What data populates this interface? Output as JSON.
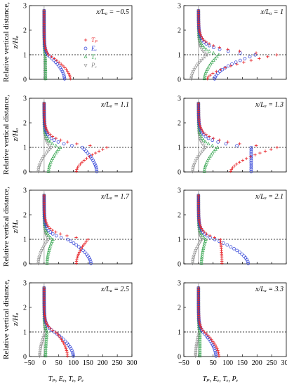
{
  "ylabel_line1": "Relative vertical distance,",
  "ylabel_line2": "z/Hₐ",
  "xlabel": "Tₚ, Eₑ, Tₑ, Pₑ",
  "colors": {
    "TP": "#e8262b",
    "ED": "#2a3cd6",
    "TD": "#2fa24a",
    "PD": "#8c8c8c"
  },
  "legend": [
    {
      "key": "TP",
      "label": "Tₚ",
      "marker": "+"
    },
    {
      "key": "ED",
      "label": "Eₑ",
      "marker": "o"
    },
    {
      "key": "TD",
      "label": "Tₑ",
      "marker": "triangle"
    },
    {
      "key": "PD",
      "label": "Pₑ",
      "marker": "v"
    }
  ],
  "chart_data": {
    "type": "scatter",
    "xlim": [
      -50,
      300
    ],
    "ylim": [
      0,
      3
    ],
    "xticks": [
      -50,
      0,
      50,
      100,
      150,
      200,
      250,
      300
    ],
    "yticks": [
      0,
      1,
      2,
      3
    ],
    "reference_line_y": 1,
    "panels": [
      {
        "label": "x/Lₐ = −0.5",
        "peak": {
          "TP": 15,
          "ED": 12,
          "TD": 4,
          "PD": 3
        },
        "base": {
          "TP": 90,
          "ED": 70,
          "TD": 5,
          "PD": 3
        }
      },
      {
        "label": "x/Lₐ = 1",
        "peak": {
          "TP": 270,
          "ED": 195,
          "TD": 70,
          "PD": 30
        },
        "base": {
          "TP": 30,
          "ED": 55,
          "TD": 20,
          "PD": -25
        }
      },
      {
        "label": "x/Lₐ = 1.1",
        "peak": {
          "TP": 215,
          "ED": 130,
          "TD": 55,
          "PD": 25
        },
        "base": {
          "TP": 110,
          "ED": 180,
          "TD": 15,
          "PD": -20
        }
      },
      {
        "label": "x/Lₐ = 1.3",
        "peak": {
          "TP": 270,
          "ED": 180,
          "TD": 65,
          "PD": 25
        },
        "base": {
          "TP": 110,
          "ED": 180,
          "TD": 20,
          "PD": -20
        }
      },
      {
        "label": "x/Lₐ = 1.7",
        "peak": {
          "TP": 150,
          "ED": 80,
          "TD": 30,
          "PD": 15
        },
        "base": {
          "TP": 110,
          "ED": 160,
          "TD": 10,
          "PD": -20
        }
      },
      {
        "label": "x/Lₐ = 2.1",
        "peak": {
          "TP": 75,
          "ED": 55,
          "TD": 25,
          "PD": 12
        },
        "base": {
          "TP": 80,
          "ED": 170,
          "TD": 10,
          "PD": -20
        }
      },
      {
        "label": "x/Lₐ = 2.5",
        "peak": {
          "TP": 40,
          "ED": 35,
          "TD": 10,
          "PD": 5
        },
        "base": {
          "TP": 80,
          "ED": 100,
          "TD": 5,
          "PD": -15
        }
      },
      {
        "label": "x/Lₐ = 3.3",
        "peak": {
          "TP": 20,
          "ED": 15,
          "TD": 5,
          "PD": 3
        },
        "base": {
          "TP": 70,
          "ED": 60,
          "TD": 5,
          "PD": -10
        }
      }
    ]
  }
}
